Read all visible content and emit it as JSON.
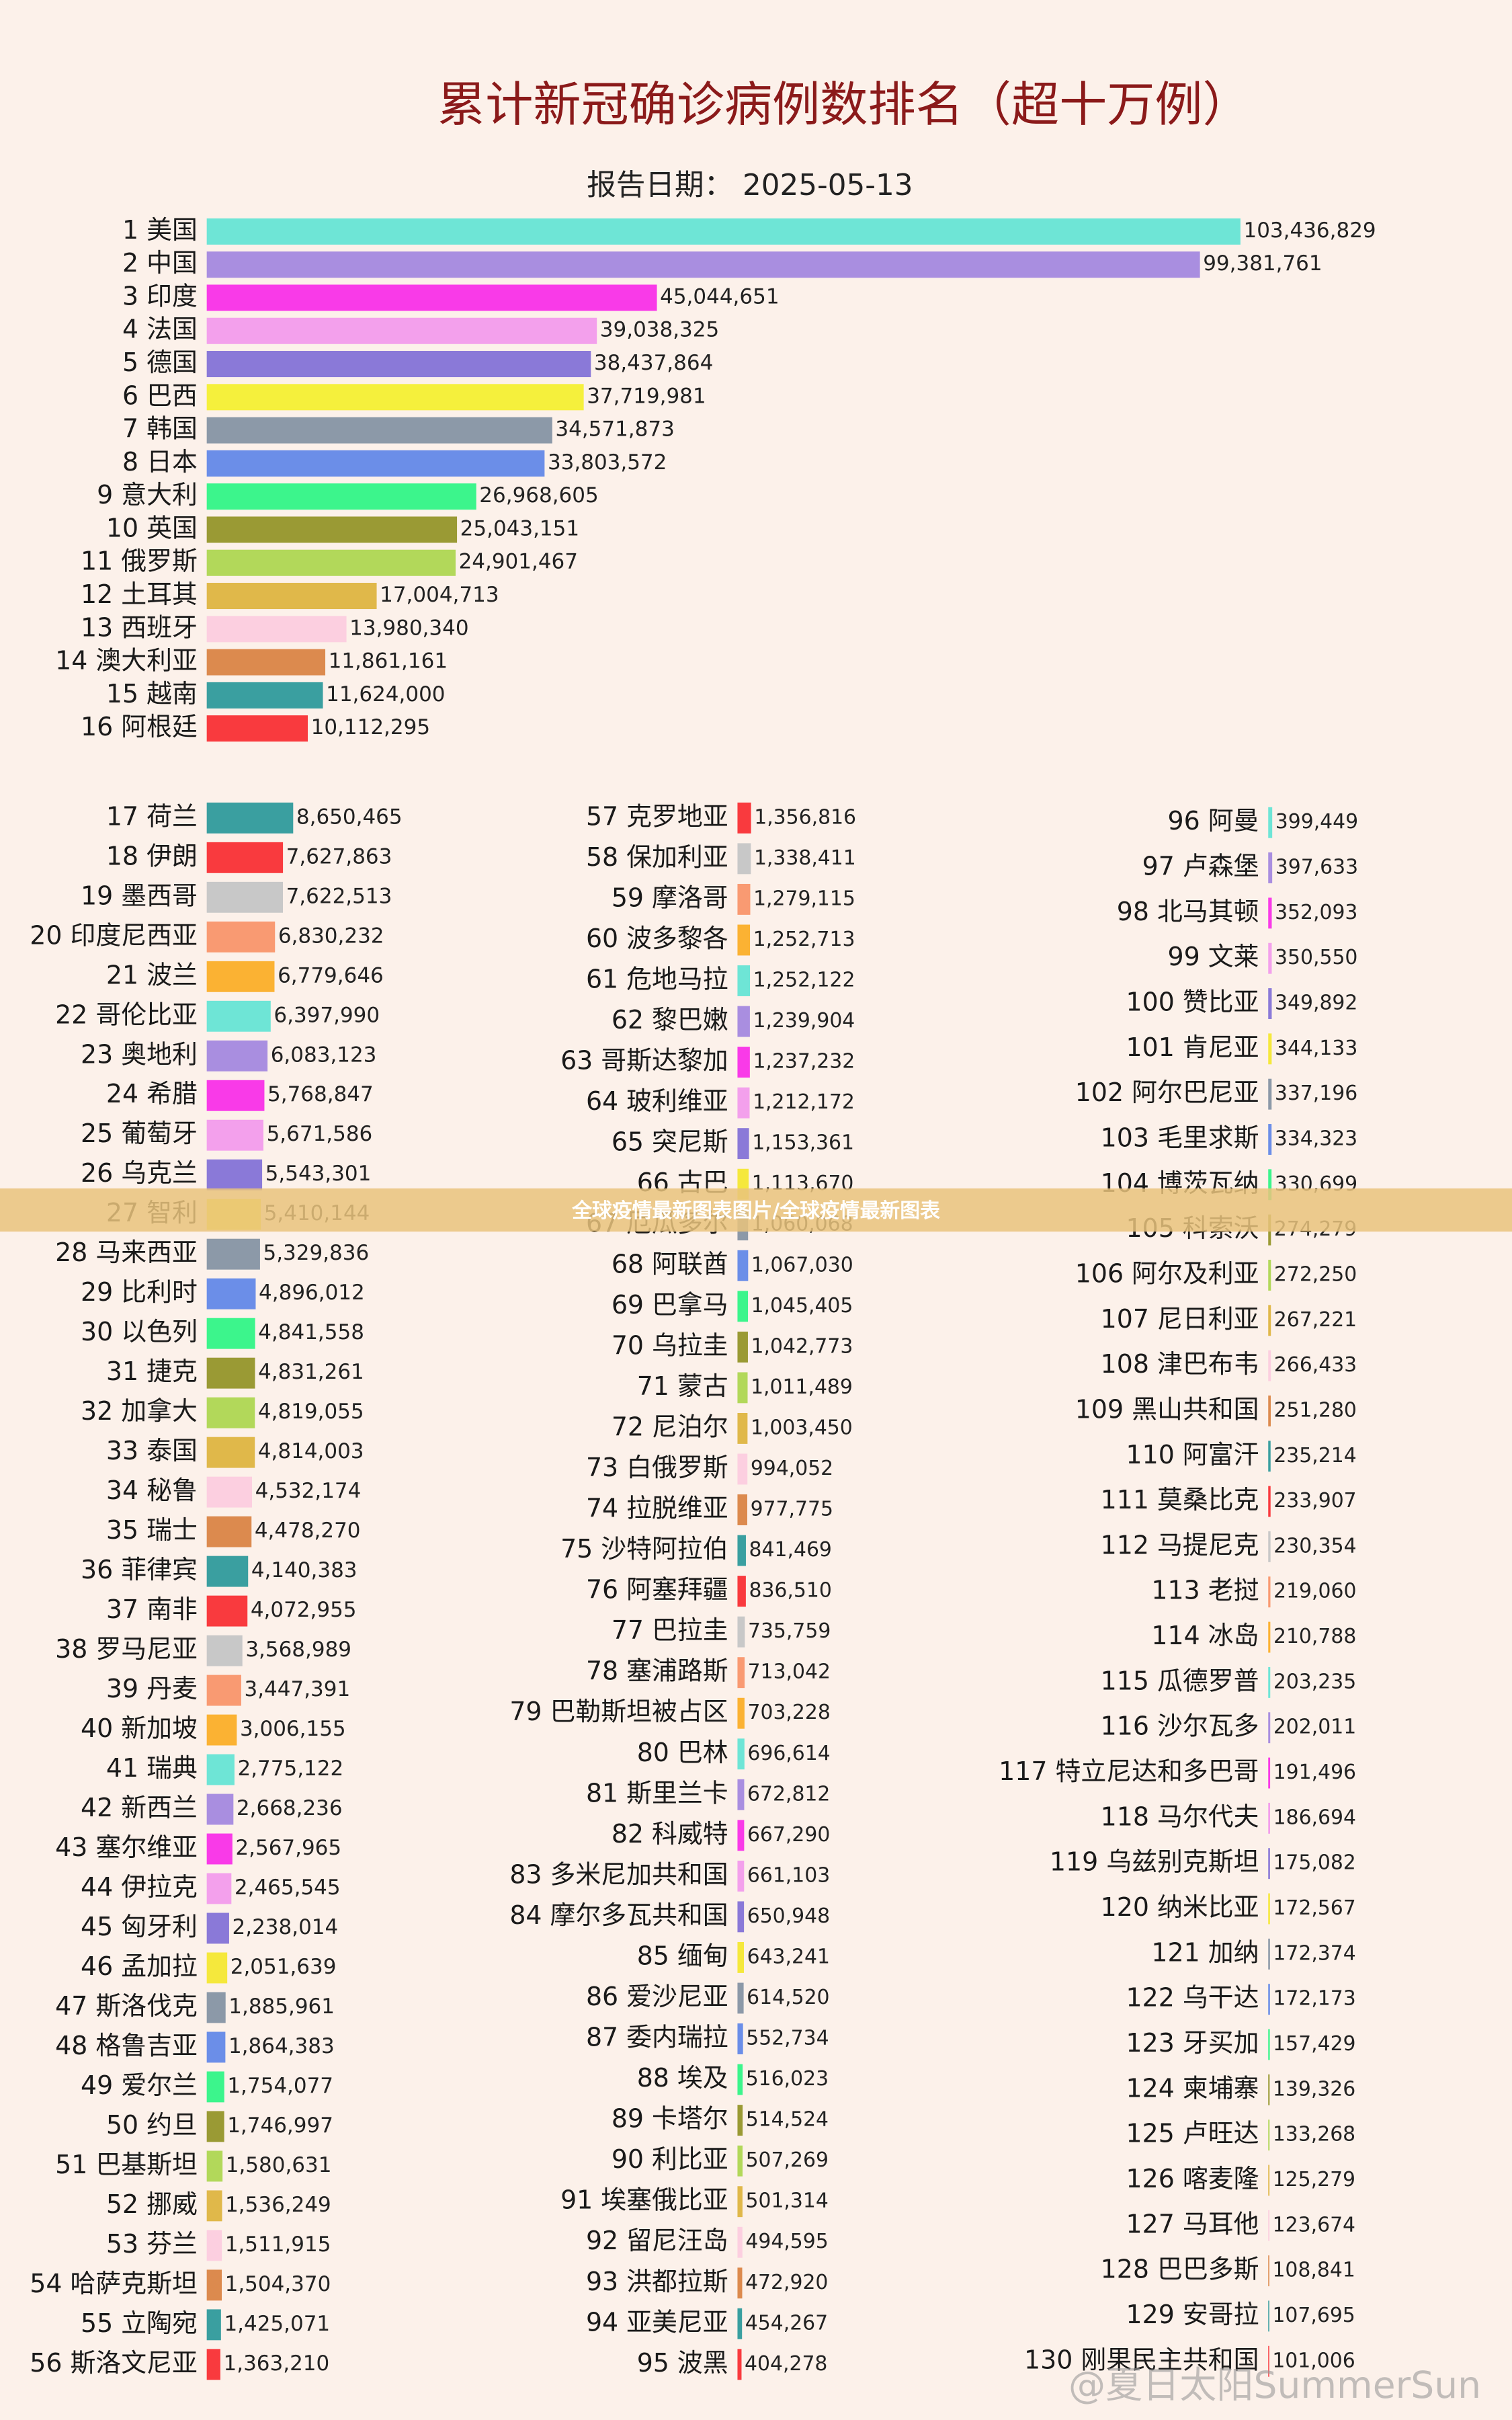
{
  "chart_data": [
    {
      "type": "bar",
      "orientation": "horizontal",
      "title": "累计新冠确诊病例数排名（超十万例）",
      "subtitle": "报告日期： 2025-05-13",
      "categories": [
        "1 美国",
        "2 中国",
        "3 印度",
        "4 法国",
        "5 德国",
        "6 巴西",
        "7 韩国",
        "8 日本",
        "9 意大利",
        "10 英国",
        "11 俄罗斯",
        "12 土耳其",
        "13 西班牙",
        "14 澳大利亚",
        "15 越南",
        "16 阿根廷"
      ],
      "values": [
        103436829,
        99381761,
        45044651,
        39038325,
        38437864,
        37719981,
        34571873,
        33803572,
        26968605,
        25043151,
        24901467,
        17004713,
        13980340,
        11861161,
        11624000,
        10112295
      ],
      "value_labels": [
        "103,436,829",
        "99,381,761",
        "45,044,651",
        "39,038,325",
        "38,437,864",
        "37,719,981",
        "34,571,873",
        "33,803,572",
        "26,968,605",
        "25,043,151",
        "24,901,467",
        "17,004,713",
        "13,980,340",
        "11,861,161",
        "11,624,000",
        "10,112,295"
      ],
      "colors": [
        "#6ee5d6",
        "#a98ee0",
        "#f93ae8",
        "#f3a0ec",
        "#8a79d8",
        "#f5f03c",
        "#8c99a8",
        "#6b8ee8",
        "#3cf58c",
        "#9a9a34",
        "#b2d85a",
        "#e0b84a",
        "#fccfe0",
        "#dc8a4e",
        "#3a9fa0",
        "#f93a3e"
      ]
    },
    {
      "type": "bar",
      "orientation": "horizontal",
      "categories": [
        "17 荷兰",
        "18 伊朗",
        "19 墨西哥",
        "20 印度尼西亚",
        "21 波兰",
        "22 哥伦比亚",
        "23 奥地利",
        "24 希腊",
        "25 葡萄牙",
        "26 乌克兰",
        "27 智利",
        "28 马来西亚",
        "29 比利时",
        "30 以色列",
        "31 捷克",
        "32 加拿大",
        "33 泰国",
        "34 秘鲁",
        "35 瑞士",
        "36 菲律宾",
        "37 南非",
        "38 罗马尼亚",
        "39 丹麦",
        "40 新加坡",
        "41 瑞典",
        "42 新西兰",
        "43 塞尔维亚",
        "44 伊拉克",
        "45 匈牙利",
        "46 孟加拉",
        "47 斯洛伐克",
        "48 格鲁吉亚",
        "49 爱尔兰",
        "50 约旦",
        "51 巴基斯坦",
        "52 挪威",
        "53 芬兰",
        "54 哈萨克斯坦",
        "55 立陶宛",
        "56 斯洛文尼亚"
      ],
      "values": [
        8650465,
        7627863,
        7622513,
        6830232,
        6779646,
        6397990,
        6083123,
        5768847,
        5671586,
        5543301,
        5410144,
        5329836,
        4896012,
        4841558,
        4831261,
        4819055,
        4814003,
        4532174,
        4478270,
        4140383,
        4072955,
        3568989,
        3447391,
        3006155,
        2775122,
        2668236,
        2567965,
        2465545,
        2238014,
        2051639,
        1885961,
        1864383,
        1754077,
        1746997,
        1580631,
        1536249,
        1511915,
        1504370,
        1425071,
        1363210
      ],
      "value_labels": [
        "8,650,465",
        "7,627,863",
        "7,622,513",
        "6,830,232",
        "6,779,646",
        "6,397,990",
        "6,083,123",
        "5,768,847",
        "5,671,586",
        "5,543,301",
        "5,410,144",
        "5,329,836",
        "4,896,012",
        "4,841,558",
        "4,831,261",
        "4,819,055",
        "4,814,003",
        "4,532,174",
        "4,478,270",
        "4,140,383",
        "4,072,955",
        "3,568,989",
        "3,447,391",
        "3,006,155",
        "2,775,122",
        "2,668,236",
        "2,567,965",
        "2,465,545",
        "2,238,014",
        "2,051,639",
        "1,885,961",
        "1,864,383",
        "1,754,077",
        "1,746,997",
        "1,580,631",
        "1,536,249",
        "1,511,915",
        "1,504,370",
        "1,425,071",
        "1,363,210"
      ],
      "colors": [
        "#3a9fa0",
        "#f93a3e",
        "#c8c8c8",
        "#f99a72",
        "#fbb233",
        "#6ee5d6",
        "#a98ee0",
        "#f93ae8",
        "#f3a0ec",
        "#8a79d8",
        "#f5e83c",
        "#8c99a8",
        "#6b8ee8",
        "#3cf58c",
        "#9a9a34",
        "#b2d85a",
        "#e0b84a",
        "#fccfe0",
        "#dc8a4e",
        "#3a9fa0",
        "#f93a3e",
        "#c8c8c8",
        "#f99a72",
        "#fbb233",
        "#6ee5d6",
        "#a98ee0",
        "#f93ae8",
        "#f3a0ec",
        "#8a79d8",
        "#f5e83c",
        "#8c99a8",
        "#6b8ee8",
        "#3cf58c",
        "#9a9a34",
        "#b2d85a",
        "#e0b84a",
        "#fccfe0",
        "#dc8a4e",
        "#3a9fa0",
        "#f93a3e"
      ]
    },
    {
      "type": "bar",
      "orientation": "horizontal",
      "categories": [
        "57 克罗地亚",
        "58 保加利亚",
        "59 摩洛哥",
        "60 波多黎各",
        "61 危地马拉",
        "62 黎巴嫩",
        "63 哥斯达黎加",
        "64 玻利维亚",
        "65 突尼斯",
        "66 古巴",
        "67 厄瓜多尔",
        "68 阿联酋",
        "69 巴拿马",
        "70 乌拉圭",
        "71 蒙古",
        "72 尼泊尔",
        "73 白俄罗斯",
        "74 拉脱维亚",
        "75 沙特阿拉伯",
        "76 阿塞拜疆",
        "77 巴拉圭",
        "78 塞浦路斯",
        "79 巴勒斯坦被占区",
        "80 巴林",
        "81 斯里兰卡",
        "82 科威特",
        "83 多米尼加共和国",
        "84 摩尔多瓦共和国",
        "85 缅甸",
        "86 爱沙尼亚",
        "87 委内瑞拉",
        "88 埃及",
        "89 卡塔尔",
        "90 利比亚",
        "91 埃塞俄比亚",
        "92 留尼汪岛",
        "93 洪都拉斯",
        "94 亚美尼亚",
        "95 波黑"
      ],
      "values": [
        1356816,
        1338411,
        1279115,
        1252713,
        1252122,
        1239904,
        1237232,
        1212172,
        1153361,
        1113670,
        1060068,
        1067030,
        1045405,
        1042773,
        1011489,
        1003450,
        994052,
        977775,
        841469,
        836510,
        735759,
        713042,
        703228,
        696614,
        672812,
        667290,
        661103,
        650948,
        643241,
        614520,
        552734,
        516023,
        514524,
        507269,
        501314,
        494595,
        472920,
        454267,
        404278
      ],
      "value_labels": [
        "1,356,816",
        "1,338,411",
        "1,279,115",
        "1,252,713",
        "1,252,122",
        "1,239,904",
        "1,237,232",
        "1,212,172",
        "1,153,361",
        "1,113,670",
        "1,060,068",
        "1,067,030",
        "1,045,405",
        "1,042,773",
        "1,011,489",
        "1,003,450",
        "994,052",
        "977,775",
        "841,469",
        "836,510",
        "735,759",
        "713,042",
        "703,228",
        "696,614",
        "672,812",
        "667,290",
        "661,103",
        "650,948",
        "643,241",
        "614,520",
        "552,734",
        "516,023",
        "514,524",
        "507,269",
        "501,314",
        "494,595",
        "472,920",
        "454,267",
        "404,278"
      ],
      "colors": [
        "#f93a3e",
        "#c8c8c8",
        "#f99a72",
        "#fbb233",
        "#6ee5d6",
        "#a98ee0",
        "#f93ae8",
        "#f3a0ec",
        "#8a79d8",
        "#f5e83c",
        "#8c99a8",
        "#6b8ee8",
        "#3cf58c",
        "#9a9a34",
        "#b2d85a",
        "#e0b84a",
        "#fccfe0",
        "#dc8a4e",
        "#3a9fa0",
        "#f93a3e",
        "#c8c8c8",
        "#f99a72",
        "#fbb233",
        "#6ee5d6",
        "#a98ee0",
        "#f93ae8",
        "#f3a0ec",
        "#8a79d8",
        "#f5e83c",
        "#8c99a8",
        "#6b8ee8",
        "#3cf58c",
        "#9a9a34",
        "#b2d85a",
        "#e0b84a",
        "#fccfe0",
        "#dc8a4e",
        "#3a9fa0",
        "#f93a3e"
      ]
    },
    {
      "type": "bar",
      "orientation": "horizontal",
      "categories": [
        "96 阿曼",
        "97 卢森堡",
        "98 北马其顿",
        "99 文莱",
        "100 赞比亚",
        "101 肯尼亚",
        "102 阿尔巴尼亚",
        "103 毛里求斯",
        "104 博茨瓦纳",
        "105 科索沃",
        "106 阿尔及利亚",
        "107 尼日利亚",
        "108 津巴布韦",
        "109 黑山共和国",
        "110 阿富汗",
        "111 莫桑比克",
        "112 马提尼克",
        "113 老挝",
        "114 冰岛",
        "115 瓜德罗普",
        "116 沙尔瓦多",
        "117 特立尼达和多巴哥",
        "118 马尔代夫",
        "119 乌兹别克斯坦",
        "120 纳米比亚",
        "121 加纳",
        "122 乌干达",
        "123 牙买加",
        "124 柬埔寨",
        "125 卢旺达",
        "126 喀麦隆",
        "127 马耳他",
        "128 巴巴多斯",
        "129 安哥拉",
        "130 刚果民主共和国"
      ],
      "values": [
        399449,
        397633,
        352093,
        350550,
        349892,
        344133,
        337196,
        334323,
        330699,
        274279,
        272250,
        267221,
        266433,
        251280,
        235214,
        233907,
        230354,
        219060,
        210788,
        203235,
        202011,
        191496,
        186694,
        175082,
        172567,
        172374,
        172173,
        157429,
        139326,
        133268,
        125279,
        123674,
        108841,
        107695,
        101006
      ],
      "value_labels": [
        "399,449",
        "397,633",
        "352,093",
        "350,550",
        "349,892",
        "344,133",
        "337,196",
        "334,323",
        "330,699",
        "274,279",
        "272,250",
        "267,221",
        "266,433",
        "251,280",
        "235,214",
        "233,907",
        "230,354",
        "219,060",
        "210,788",
        "203,235",
        "202,011",
        "191,496",
        "186,694",
        "175,082",
        "172,567",
        "172,374",
        "172,173",
        "157,429",
        "139,326",
        "133,268",
        "125,279",
        "123,674",
        "108,841",
        "107,695",
        "101,006"
      ],
      "colors": [
        "#6ee5d6",
        "#a98ee0",
        "#f93ae8",
        "#f3a0ec",
        "#8a79d8",
        "#f5e83c",
        "#8c99a8",
        "#6b8ee8",
        "#3cf58c",
        "#9a9a34",
        "#b2d85a",
        "#e0b84a",
        "#fccfe0",
        "#dc8a4e",
        "#3a9fa0",
        "#f93a3e",
        "#c8c8c8",
        "#f99a72",
        "#fbb233",
        "#6ee5d6",
        "#a98ee0",
        "#f93ae8",
        "#f3a0ec",
        "#8a79d8",
        "#f5e83c",
        "#8c99a8",
        "#6b8ee8",
        "#3cf58c",
        "#9a9a34",
        "#b2d85a",
        "#e0b84a",
        "#fccfe0",
        "#dc8a4e",
        "#3a9fa0",
        "#f93a3e"
      ]
    }
  ],
  "overlay": {
    "banner": "全球疫情最新图表图片/全球疫情最新图表",
    "watermark": "@夏日太阳SummerSun"
  }
}
